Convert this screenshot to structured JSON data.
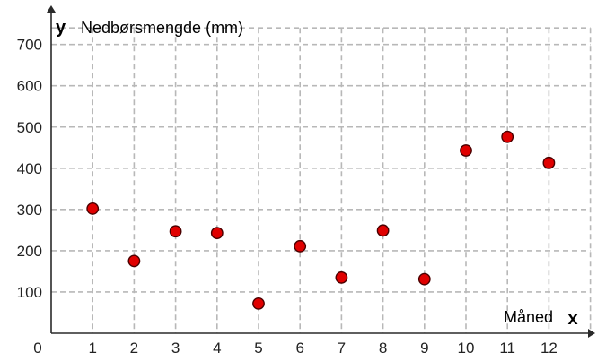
{
  "chart_data": {
    "type": "scatter",
    "title": "",
    "ylabel": "Nedbørsmengde (mm)",
    "xlabel": "Måned",
    "x_axis_letter": "x",
    "y_axis_letter": "y",
    "origin_label": "0",
    "x": [
      1,
      2,
      3,
      4,
      5,
      6,
      7,
      8,
      9,
      10,
      11,
      12
    ],
    "y": [
      302,
      175,
      247,
      243,
      72,
      211,
      135,
      249,
      131,
      443,
      476,
      413
    ],
    "xlim": [
      0,
      13
    ],
    "ylim": [
      0,
      740
    ],
    "x_ticks": [
      1,
      2,
      3,
      4,
      5,
      6,
      7,
      8,
      9,
      10,
      11,
      12
    ],
    "y_ticks": [
      100,
      200,
      300,
      400,
      500,
      600,
      700
    ],
    "x_tick_labels": [
      "1",
      "2",
      "3",
      "4",
      "5",
      "6",
      "7",
      "8",
      "9",
      "10",
      "11",
      "12"
    ],
    "y_tick_labels": [
      "100",
      "200",
      "300",
      "400",
      "500",
      "600",
      "700"
    ],
    "grid": true,
    "grid_style": "dashed",
    "legend": "none",
    "marker_color": "#e00000",
    "marker_edge_color": "#4a0000",
    "grid_color": "#b8b8b8",
    "axis_color": "#2a2a2a"
  }
}
